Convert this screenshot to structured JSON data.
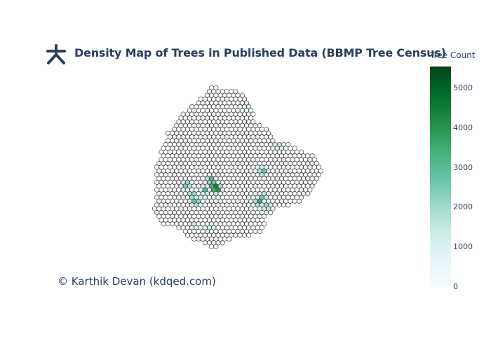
{
  "title": "Density Map of Trees in Published Data (BBMP Tree Census)",
  "credit": "© Karthik Devan (kdqed.com)",
  "logo_icon": "asterisk-logo-icon",
  "colorbar": {
    "title": "Tree Count",
    "ticks": [
      "0",
      "1000",
      "2000",
      "3000",
      "4000",
      "5000"
    ],
    "tick_values": [
      0,
      1000,
      2000,
      3000,
      4000,
      5000
    ],
    "max": 5550,
    "colors": [
      "#f7fcfd",
      "#e5f5f9",
      "#ccece6",
      "#99d8c9",
      "#66c2a4",
      "#41ae76",
      "#238b45",
      "#006d2c",
      "#00441b"
    ]
  },
  "map": {
    "type": "hexbin",
    "outline_color": "#444444",
    "hot_spots": [
      {
        "col": 0.39,
        "row": 0.62,
        "value": 5550
      },
      {
        "col": 0.37,
        "row": 0.6,
        "value": 3900
      },
      {
        "col": 0.36,
        "row": 0.57,
        "value": 3400
      },
      {
        "col": 0.33,
        "row": 0.63,
        "value": 3000
      },
      {
        "col": 0.28,
        "row": 0.7,
        "value": 3200
      },
      {
        "col": 0.26,
        "row": 0.66,
        "value": 2700
      },
      {
        "col": 0.23,
        "row": 0.6,
        "value": 2900
      },
      {
        "col": 0.62,
        "row": 0.7,
        "value": 3700
      },
      {
        "col": 0.64,
        "row": 0.52,
        "value": 2900
      },
      {
        "col": 0.64,
        "row": 0.67,
        "value": 2800
      },
      {
        "col": 0.66,
        "row": 0.73,
        "value": 2300
      },
      {
        "col": 0.73,
        "row": 0.37,
        "value": 1700
      },
      {
        "col": 0.26,
        "row": 0.84,
        "value": 1500
      },
      {
        "col": 0.36,
        "row": 0.86,
        "value": 1300
      },
      {
        "col": 0.56,
        "row": 0.14,
        "value": 900
      }
    ]
  }
}
